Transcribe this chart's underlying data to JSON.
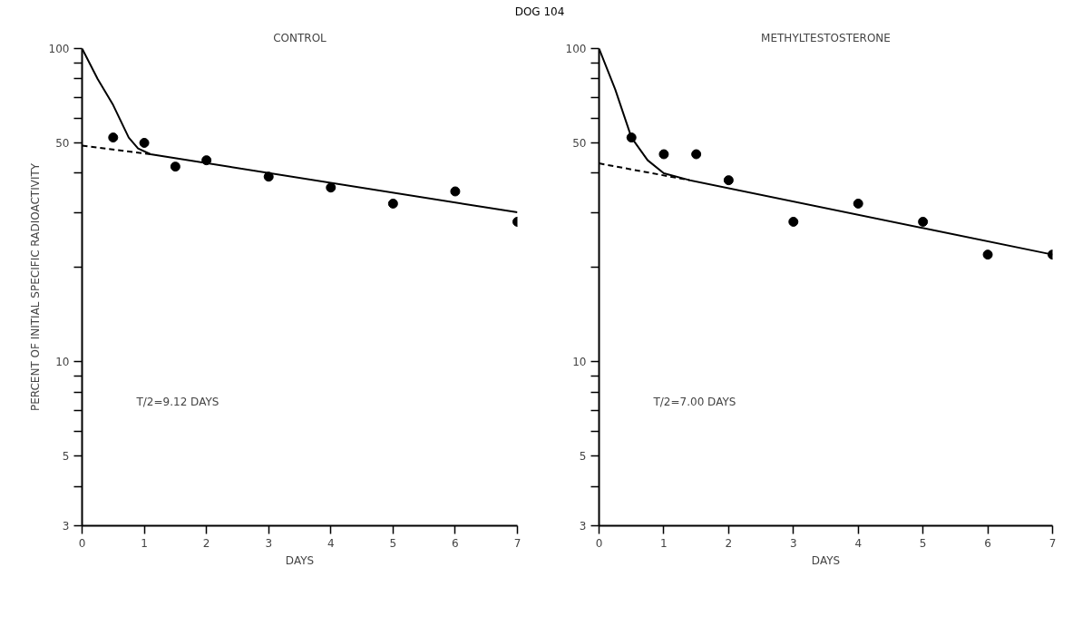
{
  "chart_data": [
    {
      "type": "scatter",
      "title": "DOG 104",
      "subtitle": "CONTROL",
      "xlabel": "DAYS",
      "ylabel": "PERCENT OF INITIAL SPECIFIC RADIOACTIVITY",
      "log": "y",
      "xlim": [
        0,
        7
      ],
      "ylim": [
        3,
        100
      ],
      "xticks": [
        0,
        1,
        2,
        3,
        4,
        5,
        6,
        7
      ],
      "yticks": [
        3,
        {
          "value": 4,
          "label": null
        },
        5,
        {
          "value": 6,
          "label": null
        },
        {
          "value": 7,
          "label": null
        },
        {
          "value": 8,
          "label": null
        },
        {
          "value": 9,
          "label": null
        },
        10,
        {
          "value": 20,
          "label": null
        },
        {
          "value": 30,
          "label": null
        },
        {
          "value": 40,
          "label": null
        },
        50,
        {
          "value": 60,
          "label": null
        },
        {
          "value": 70,
          "label": null
        },
        {
          "value": 80,
          "label": null
        },
        {
          "value": 90,
          "label": null
        },
        100
      ],
      "grid": false,
      "annotations": [
        "T/2=9.12  DAYS"
      ],
      "series": [
        {
          "marker": "circle",
          "color": "#000000",
          "x": [
            0.5,
            1,
            1.5,
            2,
            3,
            4,
            5,
            6,
            7
          ],
          "values": [
            52,
            50,
            42,
            44,
            39,
            36,
            32,
            35,
            28
          ]
        },
        {
          "type": "line",
          "line_style": "solid",
          "color": "#000000",
          "x": [
            0,
            0.25,
            0.5,
            0.75,
            0.9,
            1.1,
            7
          ],
          "values": [
            100,
            80,
            66,
            52,
            48,
            46,
            30
          ]
        },
        {
          "type": "line",
          "line_style": "dashed",
          "color": "#000000",
          "x": [
            0,
            1.1
          ],
          "values": [
            49,
            46
          ]
        }
      ]
    },
    {
      "type": "scatter",
      "subtitle": "METHYLTESTOSTERONE",
      "xlabel": "DAYS",
      "log": "y",
      "xlim": [
        0,
        7
      ],
      "ylim": [
        3,
        100
      ],
      "xticks": [
        0,
        1,
        2,
        3,
        4,
        5,
        6,
        7
      ],
      "yticks": [
        3,
        {
          "value": 4,
          "label": null
        },
        5,
        {
          "value": 6,
          "label": null
        },
        {
          "value": 7,
          "label": null
        },
        {
          "value": 8,
          "label": null
        },
        {
          "value": 9,
          "label": null
        },
        10,
        {
          "value": 20,
          "label": null
        },
        {
          "value": 30,
          "label": null
        },
        {
          "value": 40,
          "label": null
        },
        50,
        {
          "value": 60,
          "label": null
        },
        {
          "value": 70,
          "label": null
        },
        {
          "value": 80,
          "label": null
        },
        {
          "value": 90,
          "label": null
        },
        100
      ],
      "grid": false,
      "annotations": [
        "T/2=7.00  DAYS"
      ],
      "series": [
        {
          "marker": "circle",
          "color": "#000000",
          "x": [
            0.5,
            1,
            1.5,
            2,
            3,
            4,
            5,
            6,
            7
          ],
          "values": [
            52,
            46,
            46,
            38,
            28,
            32,
            28,
            22,
            22
          ]
        },
        {
          "type": "line",
          "line_style": "solid",
          "color": "#000000",
          "x": [
            0,
            0.25,
            0.5,
            0.75,
            1,
            1.4,
            7
          ],
          "values": [
            100,
            74,
            52,
            44,
            40,
            38,
            22
          ]
        },
        {
          "type": "line",
          "line_style": "dashed",
          "color": "#000000",
          "x": [
            0,
            1.4
          ],
          "values": [
            43,
            38
          ]
        }
      ]
    }
  ]
}
